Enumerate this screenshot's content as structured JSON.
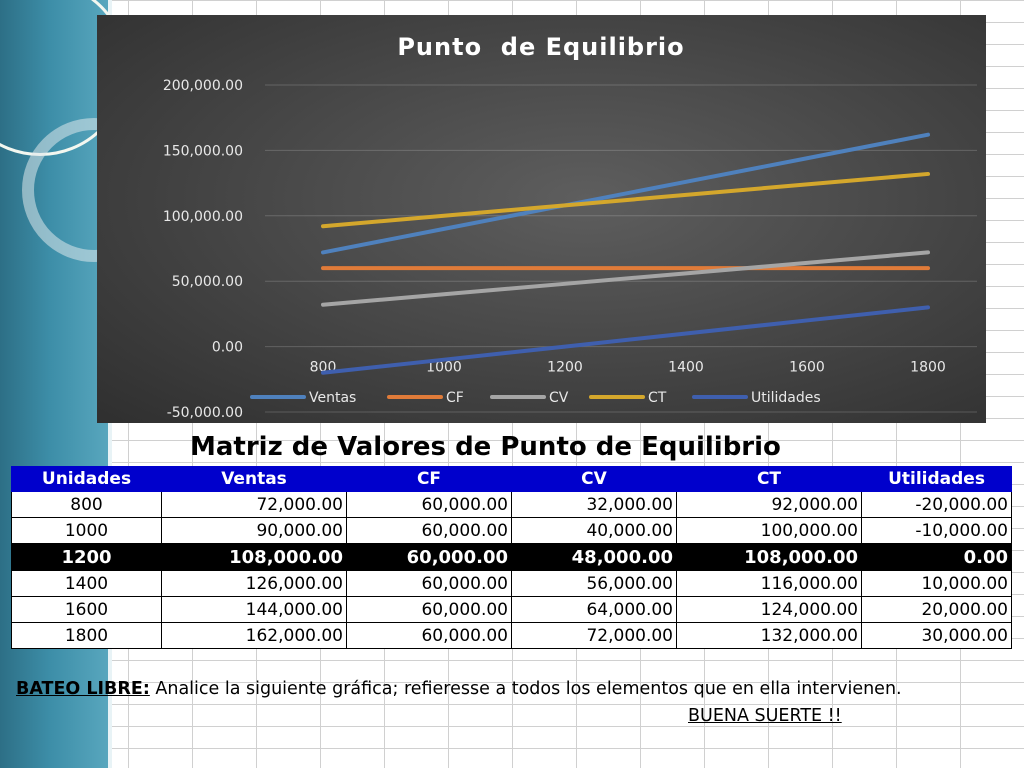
{
  "chart_data": {
    "type": "line",
    "title": "Punto  de Equilibrio",
    "categories": [
      "800",
      "1000",
      "1200",
      "1400",
      "1600",
      "1800"
    ],
    "x": [
      800,
      1000,
      1200,
      1400,
      1600,
      1800
    ],
    "ylim": [
      -50000,
      200000
    ],
    "yticks": [
      "200,000.00",
      "150,000.00",
      "100,000.00",
      "50,000.00",
      "0.00",
      "-50,000.00"
    ],
    "grid": true,
    "legend": "bottom",
    "series": [
      {
        "name": "Ventas",
        "color": "#4f81bd",
        "values": [
          72000,
          90000,
          108000,
          126000,
          144000,
          162000
        ]
      },
      {
        "name": "CF",
        "color": "#e07b39",
        "values": [
          60000,
          60000,
          60000,
          60000,
          60000,
          60000
        ]
      },
      {
        "name": "CV",
        "color": "#a5a5a5",
        "values": [
          32000,
          40000,
          48000,
          56000,
          64000,
          72000
        ]
      },
      {
        "name": "CT",
        "color": "#d4a72c",
        "values": [
          92000,
          100000,
          108000,
          116000,
          124000,
          132000
        ]
      },
      {
        "name": "Utilidades",
        "color": "#3f5fae",
        "values": [
          -20000,
          -10000,
          0,
          10000,
          20000,
          30000
        ]
      }
    ]
  },
  "matrix": {
    "title": "Matriz de Valores de Punto de Equilibrio",
    "headers": [
      "Unidades",
      "Ventas",
      "CF",
      "CV",
      "CT",
      "Utilidades"
    ],
    "rows": [
      [
        "800",
        "72,000.00",
        "60,000.00",
        "32,000.00",
        "92,000.00",
        "-20,000.00"
      ],
      [
        "1000",
        "90,000.00",
        "60,000.00",
        "40,000.00",
        "100,000.00",
        "-10,000.00"
      ],
      [
        "1200",
        "108,000.00",
        "60,000.00",
        "48,000.00",
        "108,000.00",
        "0.00"
      ],
      [
        "1400",
        "126,000.00",
        "60,000.00",
        "56,000.00",
        "116,000.00",
        "10,000.00"
      ],
      [
        "1600",
        "144,000.00",
        "60,000.00",
        "64,000.00",
        "124,000.00",
        "20,000.00"
      ],
      [
        "1800",
        "162,000.00",
        "60,000.00",
        "72,000.00",
        "132,000.00",
        "30,000.00"
      ]
    ],
    "highlight_row": 2,
    "header_color": "#0000cc"
  },
  "footer": {
    "bateo_label": "BATEO LIBRE:",
    "instruction": " Analice la siguiente gráfica;  refieresse a todos los elementos que en ella intervienen.",
    "luck": "BUENA SUERTE !!"
  }
}
